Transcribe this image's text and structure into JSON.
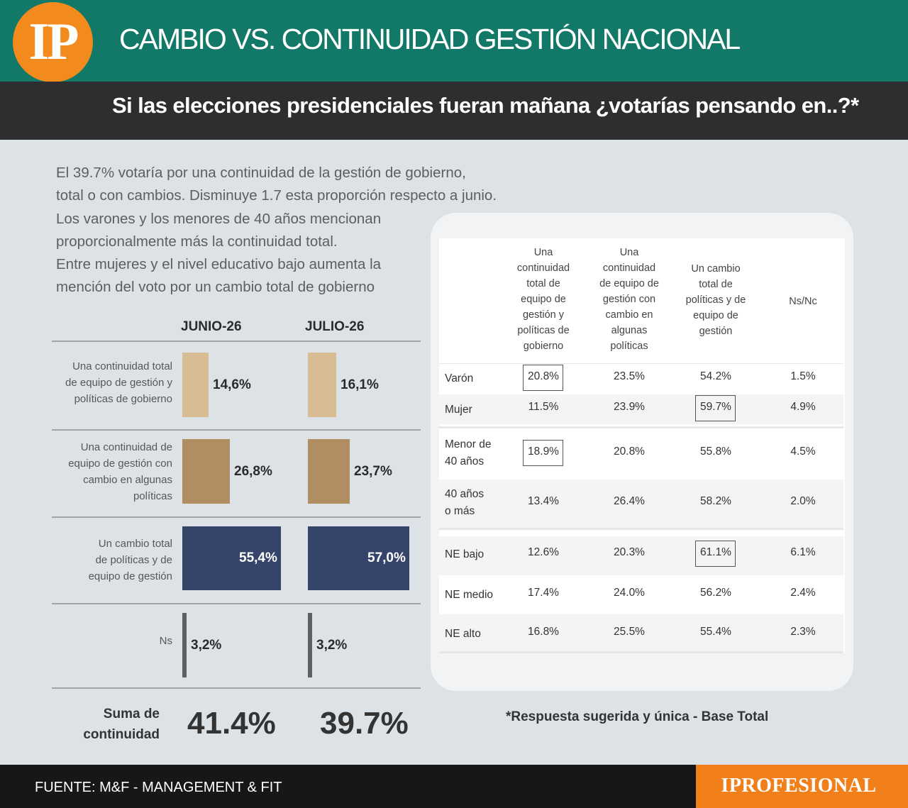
{
  "header": {
    "logo": "IP",
    "title": "CAMBIO VS. CONTINUIDAD GESTIÓN NACIONAL",
    "subtitle": "Si las elecciones presidenciales fueran mañana ¿votarías pensando en..?*"
  },
  "intro_lines": [
    "El 39.7% votaría por una continuidad de la gestión de gobierno,",
    "total o con cambios. Disminuye 1.7 esta proporción respecto a junio.",
    "Los varones y los menores de 40 años mencionan",
    "proporcionalmente más la continuidad total.",
    "Entre mujeres y el nivel educativo bajo aumenta la",
    "mención del voto por un cambio total de gobierno"
  ],
  "chart_data": {
    "type": "bar",
    "orientation": "horizontal",
    "categories": [
      "Una continuidad total de equipo de gestión y políticas de gobierno",
      "Una continuidad de equipo de gestión con cambio en algunas políticas",
      "Un cambio total de políticas y de equipo de gestión",
      "Ns"
    ],
    "category_lines": [
      [
        "Una continuidad total",
        "de equipo de gestión y",
        "políticas de gobierno"
      ],
      [
        "Una continuidad de",
        "equipo de gestión con",
        "cambio en algunas",
        "políticas"
      ],
      [
        "Un cambio total",
        "de políticas y de",
        "equipo de gestión"
      ],
      [
        "Ns"
      ]
    ],
    "series": [
      {
        "name": "JUNIO-26",
        "values": [
          14.6,
          26.8,
          55.4,
          3.2
        ],
        "labels": [
          "14,6%",
          "26,8%",
          "55,4%",
          "3,2%"
        ]
      },
      {
        "name": "JULIO-26",
        "values": [
          16.1,
          23.7,
          57.0,
          3.2
        ],
        "labels": [
          "16,1%",
          "23,7%",
          "57,0%",
          "3,2%"
        ]
      }
    ],
    "colors": [
      "#d8bd94",
      "#b08e62",
      "#35456a",
      "#5d6064"
    ],
    "sum_label": [
      "Suma de",
      "continuidad"
    ],
    "sum_values": [
      "41.4%",
      "39.7%"
    ],
    "grid": false,
    "legend": "none"
  },
  "table": {
    "columns": [
      [
        "Una",
        "continuidad",
        "total de",
        "equipo de",
        "gestión y",
        "políticas de",
        "gobierno"
      ],
      [
        "Una",
        "continuidad",
        "de equipo de",
        "gestión con",
        "cambio en",
        "algunas",
        "políticas"
      ],
      [
        "Un cambio",
        "total de",
        "políticas y de",
        "equipo de",
        "gestión"
      ],
      [
        "Ns/Nc"
      ]
    ],
    "rows": [
      {
        "label": [
          "Varón"
        ],
        "values": [
          "20.8%",
          "23.5%",
          "54.2%",
          "1.5%"
        ],
        "highlight": 0
      },
      {
        "label": [
          "Mujer"
        ],
        "values": [
          "11.5%",
          "23.9%",
          "59.7%",
          "4.9%"
        ],
        "highlight": 2
      },
      {
        "label": [
          "Menor de",
          "40 años"
        ],
        "values": [
          "18.9%",
          "20.8%",
          "55.8%",
          "4.5%"
        ],
        "highlight": 0
      },
      {
        "label": [
          "40 años",
          "o más"
        ],
        "values": [
          "13.4%",
          "26.4%",
          "58.2%",
          "2.0%"
        ],
        "highlight": -1
      },
      {
        "label": [
          "NE bajo"
        ],
        "values": [
          "12.6%",
          "20.3%",
          "61.1%",
          "6.1%"
        ],
        "highlight": 2
      },
      {
        "label": [
          "NE medio"
        ],
        "values": [
          "17.4%",
          "24.0%",
          "56.2%",
          "2.4%"
        ],
        "highlight": -1
      },
      {
        "label": [
          "NE alto"
        ],
        "values": [
          "16.8%",
          "25.5%",
          "55.4%",
          "2.3%"
        ],
        "highlight": -1
      }
    ]
  },
  "footnote": "*Respuesta sugerida y única - Base Total",
  "footer": {
    "source": "FUENTE: M&F - MANAGEMENT & FIT",
    "brand": "IPROFESIONAL"
  }
}
